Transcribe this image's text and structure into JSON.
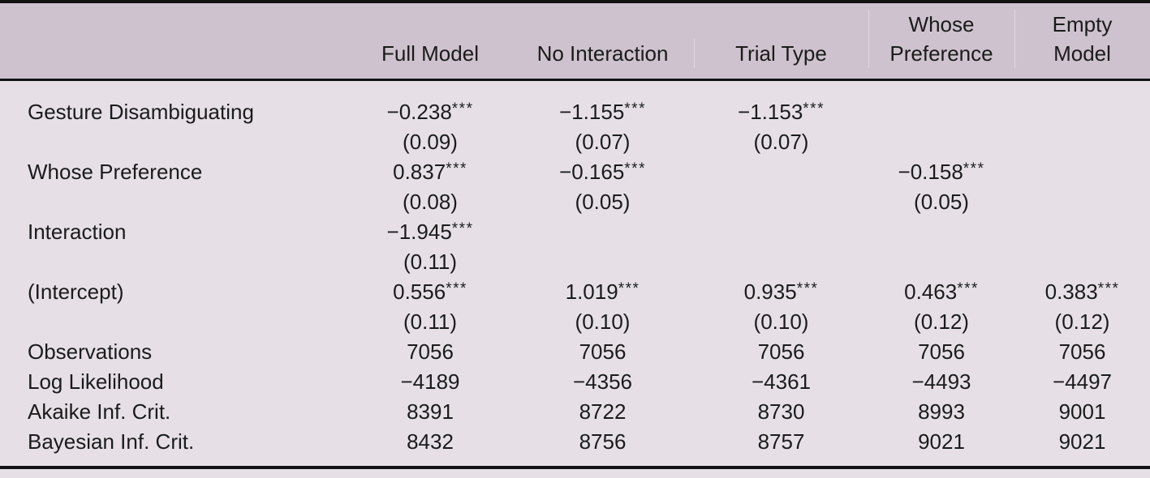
{
  "page": {
    "background_color": "#e6e0e6",
    "header_background_color": "#cdc2cd",
    "rule_color": "#121212",
    "text_color": "#1b1b1b"
  },
  "table": {
    "column_headers": [
      {
        "lines": []
      },
      {
        "lines": [
          "Full Model"
        ]
      },
      {
        "lines": [
          "No Interaction"
        ]
      },
      {
        "lines": [
          "Trial Type"
        ]
      },
      {
        "lines": [
          "Whose",
          "Preference"
        ]
      },
      {
        "lines": [
          "Empty",
          "Model"
        ]
      }
    ],
    "coefficient_rows": [
      {
        "label": "Gesture Disambiguating",
        "cells": [
          {
            "est": "−0.238",
            "stars": "***",
            "se": "(0.09)"
          },
          {
            "est": "−1.155",
            "stars": "***",
            "se": "(0.07)"
          },
          {
            "est": "−1.153",
            "stars": "***",
            "se": "(0.07)"
          },
          null,
          null
        ]
      },
      {
        "label": "Whose Preference",
        "cells": [
          {
            "est": "0.837",
            "stars": "***",
            "se": "(0.08)"
          },
          {
            "est": "−0.165",
            "stars": "***",
            "se": "(0.05)"
          },
          null,
          {
            "est": "−0.158",
            "stars": "***",
            "se": "(0.05)"
          },
          null
        ]
      },
      {
        "label": "Interaction",
        "cells": [
          {
            "est": "−1.945",
            "stars": "***",
            "se": "(0.11)"
          },
          null,
          null,
          null,
          null
        ]
      },
      {
        "label": "(Intercept)",
        "cells": [
          {
            "est": "0.556",
            "stars": "***",
            "se": "(0.11)"
          },
          {
            "est": "1.019",
            "stars": "***",
            "se": "(0.10)"
          },
          {
            "est": "0.935",
            "stars": "***",
            "se": "(0.10)"
          },
          {
            "est": "0.463",
            "stars": "***",
            "se": "(0.12)"
          },
          {
            "est": "0.383",
            "stars": "***",
            "se": "(0.12)"
          }
        ]
      }
    ],
    "stat_rows": [
      {
        "label": "Observations",
        "values": [
          "7056",
          "7056",
          "7056",
          "7056",
          "7056"
        ]
      },
      {
        "label": "Log Likelihood",
        "values": [
          "−4189",
          "−4356",
          "−4361",
          "−4493",
          "−4497"
        ]
      },
      {
        "label": "Akaike Inf. Crit.",
        "values": [
          "8391",
          "8722",
          "8730",
          "8993",
          "9001"
        ]
      },
      {
        "label": "Bayesian Inf. Crit.",
        "values": [
          "8432",
          "8756",
          "8757",
          "9021",
          "9021"
        ]
      }
    ]
  }
}
